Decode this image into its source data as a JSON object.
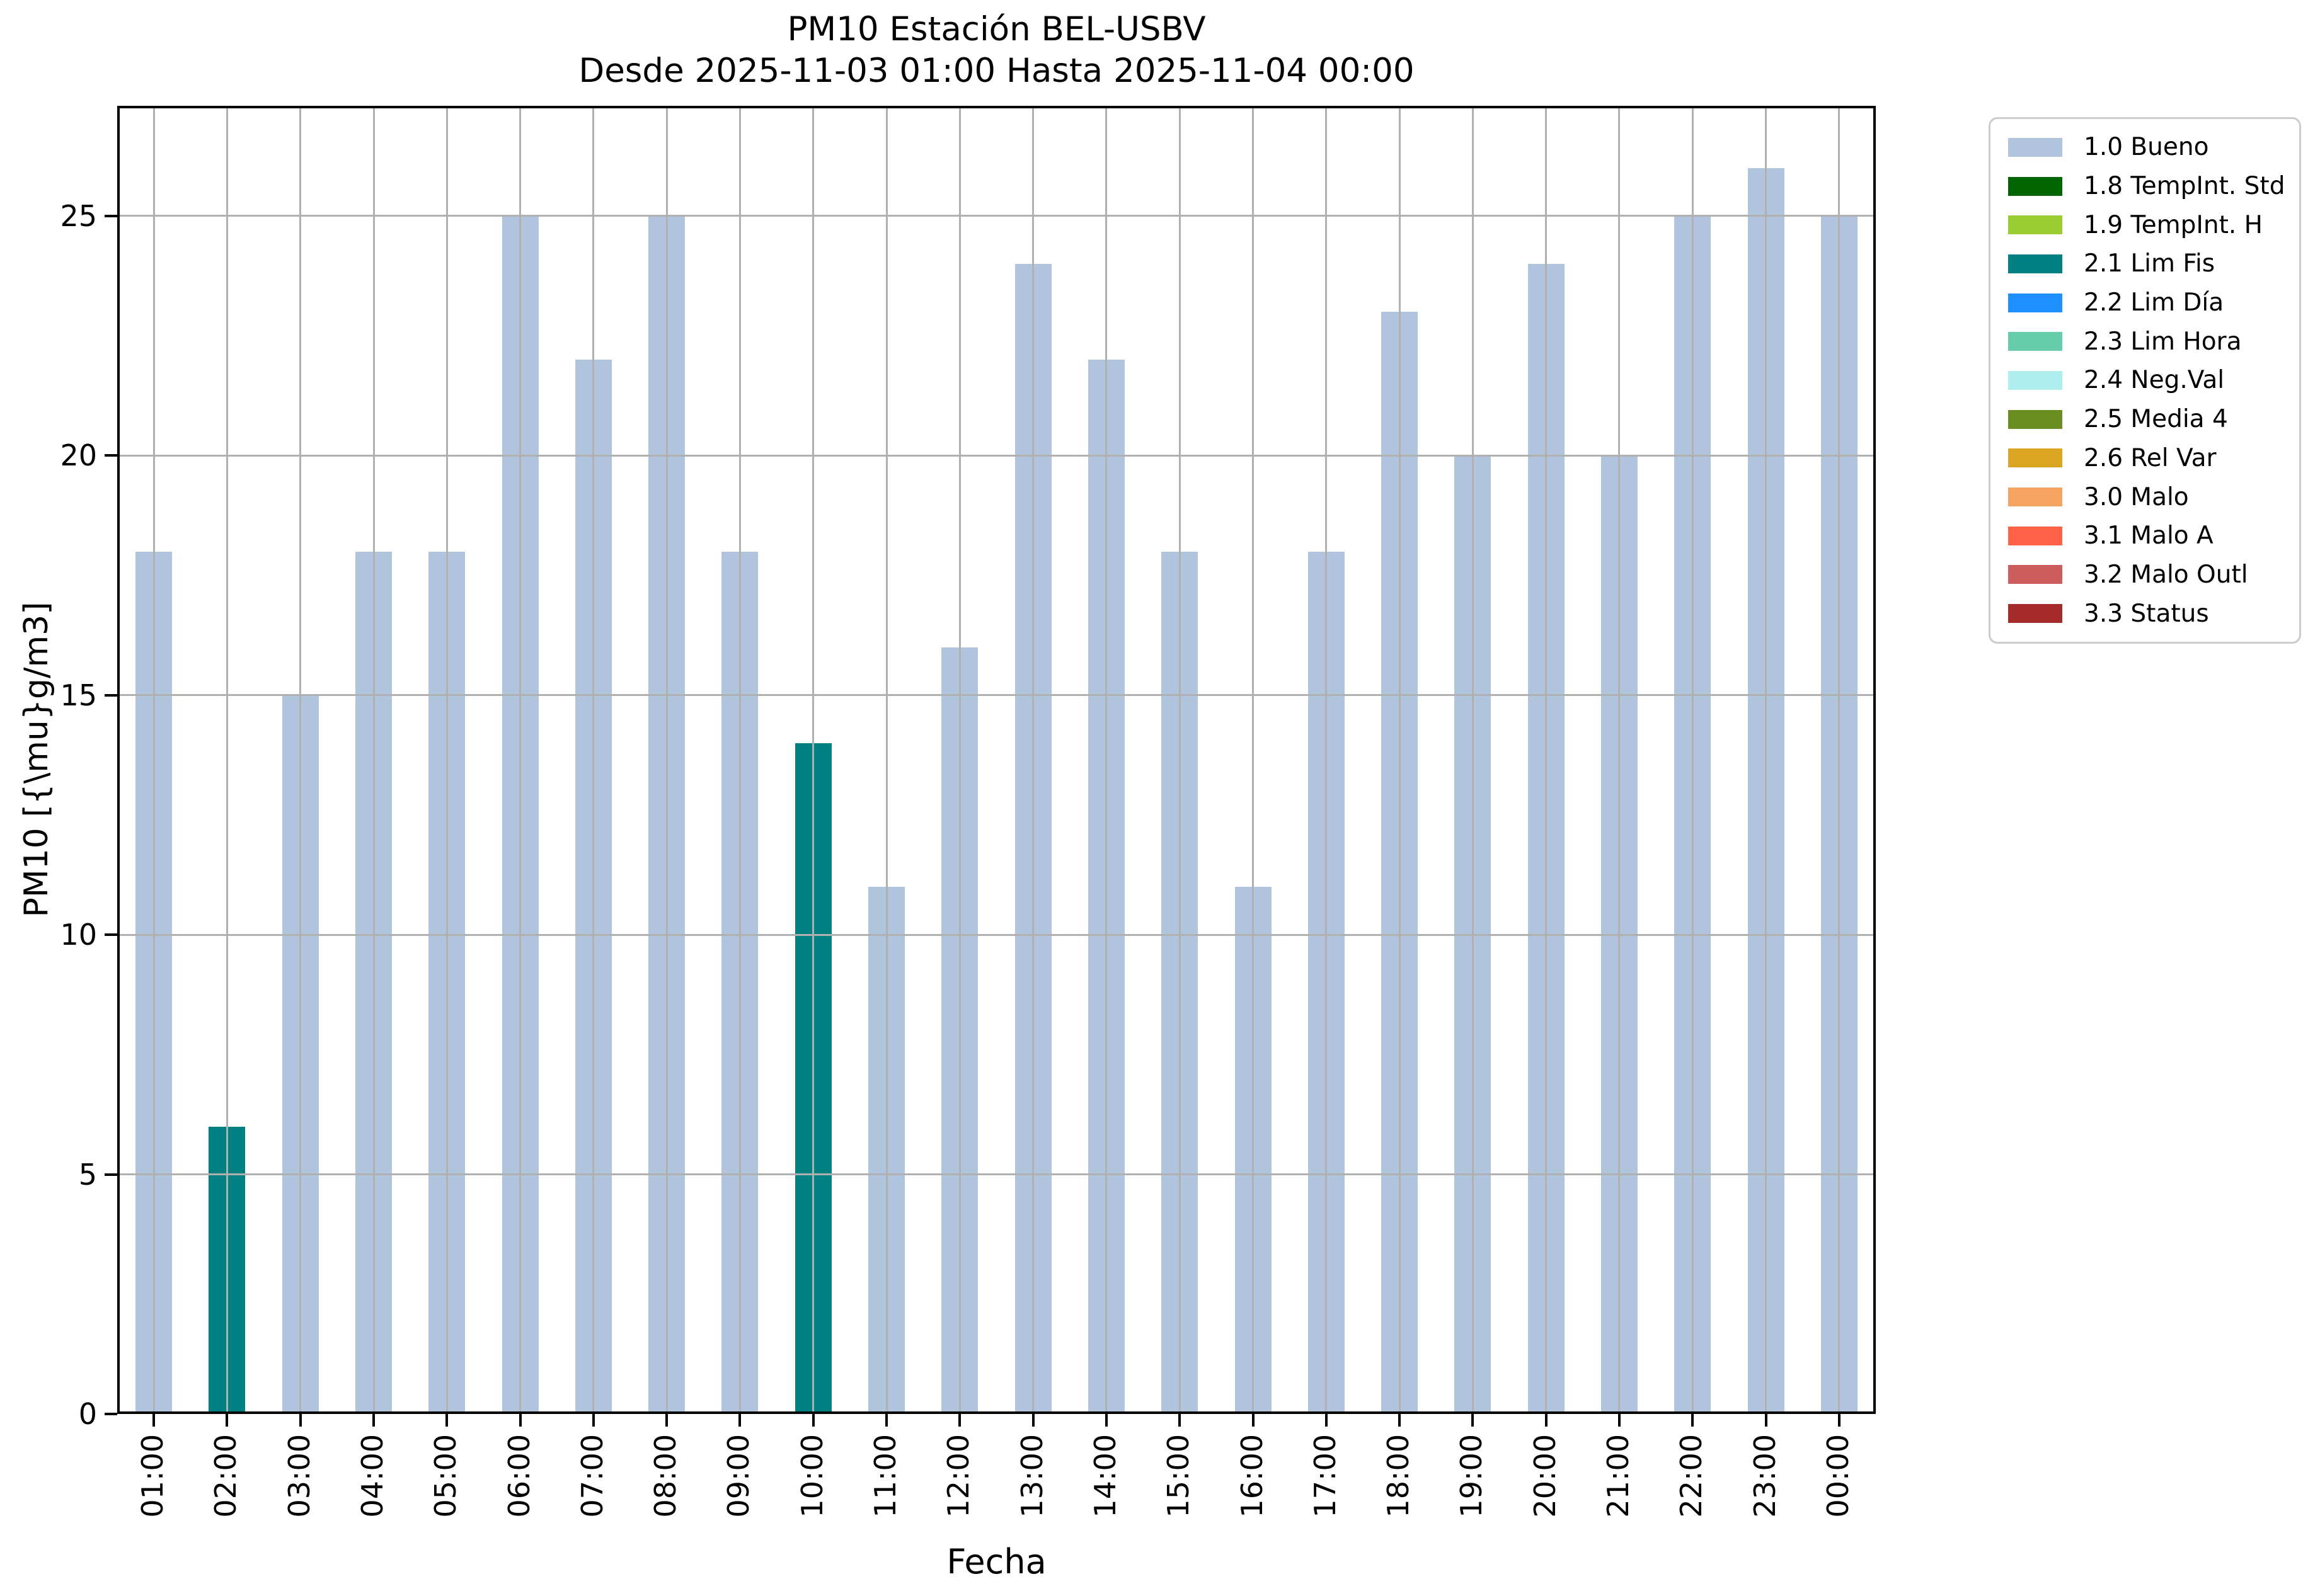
{
  "title": {
    "line1": "PM10 Estación BEL-USBV",
    "line2": "Desde 2025-11-03 01:00 Hasta 2025-11-04 00:00"
  },
  "axes": {
    "xlabel": "Fecha",
    "ylabel": "PM10 [{\\mu}g/m3]",
    "yticks": [
      0,
      5,
      10,
      15,
      20,
      25
    ],
    "grid": "on"
  },
  "chart_data": {
    "type": "bar",
    "title": "PM10 Estación BEL-USBV — Desde 2025-11-03 01:00 Hasta 2025-11-04 00:00",
    "xlabel": "Fecha",
    "ylabel": "PM10 [{\\mu}g/m3]",
    "ylim": [
      0,
      27.3
    ],
    "categories": [
      "01:00",
      "02:00",
      "03:00",
      "04:00",
      "05:00",
      "06:00",
      "07:00",
      "08:00",
      "09:00",
      "10:00",
      "11:00",
      "12:00",
      "13:00",
      "14:00",
      "15:00",
      "16:00",
      "17:00",
      "18:00",
      "19:00",
      "20:00",
      "21:00",
      "22:00",
      "23:00",
      "00:00"
    ],
    "values": [
      18,
      6,
      15,
      18,
      18,
      25,
      22,
      25,
      18,
      14,
      11,
      16,
      24,
      22,
      18,
      11,
      18,
      23,
      20,
      24,
      20,
      25,
      26,
      25
    ],
    "statuses": [
      "1.0 Bueno",
      "2.1 Lim Fis",
      "1.0 Bueno",
      "1.0 Bueno",
      "1.0 Bueno",
      "1.0 Bueno",
      "1.0 Bueno",
      "1.0 Bueno",
      "1.0 Bueno",
      "2.1 Lim Fis",
      "1.0 Bueno",
      "1.0 Bueno",
      "1.0 Bueno",
      "1.0 Bueno",
      "1.0 Bueno",
      "1.0 Bueno",
      "1.0 Bueno",
      "1.0 Bueno",
      "1.0 Bueno",
      "1.0 Bueno",
      "1.0 Bueno",
      "1.0 Bueno",
      "1.0 Bueno",
      "1.0 Bueno"
    ],
    "status_colors": {
      "1.0 Bueno": "#b0c4de",
      "2.1 Lim Fis": "#008080"
    },
    "legend_position": "outside-right"
  },
  "legend": {
    "items": [
      {
        "label": "1.0 Bueno",
        "color": "#b0c4de"
      },
      {
        "label": "1.8 TempInt. Std",
        "color": "#006400"
      },
      {
        "label": "1.9 TempInt. H",
        "color": "#9acd32"
      },
      {
        "label": "2.1 Lim Fis",
        "color": "#008080"
      },
      {
        "label": "2.2 Lim Día",
        "color": "#1e90ff"
      },
      {
        "label": "2.3 Lim Hora",
        "color": "#66cdaa"
      },
      {
        "label": "2.4 Neg.Val",
        "color": "#afeeee"
      },
      {
        "label": "2.5 Media 4",
        "color": "#6b8e23"
      },
      {
        "label": "2.6 Rel Var",
        "color": "#daa520"
      },
      {
        "label": "3.0 Malo",
        "color": "#f4a460"
      },
      {
        "label": "3.1 Malo A",
        "color": "#ff6347"
      },
      {
        "label": "3.2 Malo Outl",
        "color": "#cd5c5c"
      },
      {
        "label": "3.3 Status",
        "color": "#a52a2a"
      }
    ]
  }
}
